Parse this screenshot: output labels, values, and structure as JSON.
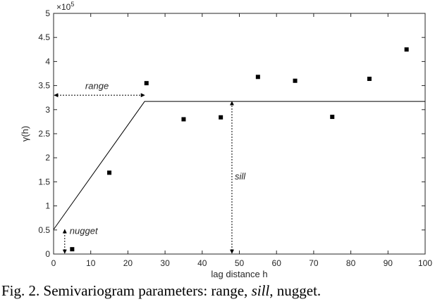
{
  "chart_data": {
    "type": "scatter",
    "xlabel": "lag distance h",
    "ylabel": "γ(h)",
    "xlim": [
      0,
      100
    ],
    "ylim": [
      0,
      5
    ],
    "y_multiplier": "×10",
    "y_multiplier_exp": "5",
    "xticks": [
      0,
      10,
      20,
      30,
      40,
      50,
      60,
      70,
      80,
      90,
      100
    ],
    "yticks": [
      0,
      0.5,
      1,
      1.5,
      2,
      2.5,
      3,
      3.5,
      4,
      4.5,
      5
    ],
    "ytick_labels": [
      "0",
      "0.5",
      "1",
      "1.5",
      "2",
      "2.5",
      "3",
      "3.5",
      "4",
      "4.5",
      "5"
    ],
    "grid": false,
    "series": [
      {
        "points": [
          {
            "x": 5,
            "y": 0.1
          },
          {
            "x": 15,
            "y": 1.69
          },
          {
            "x": 25,
            "y": 3.55
          },
          {
            "x": 35,
            "y": 2.8
          },
          {
            "x": 45,
            "y": 2.84
          },
          {
            "x": 55,
            "y": 3.68
          },
          {
            "x": 65,
            "y": 3.6
          },
          {
            "x": 75,
            "y": 2.85
          },
          {
            "x": 85,
            "y": 3.64
          },
          {
            "x": 95,
            "y": 4.25
          }
        ]
      }
    ],
    "model_line": {
      "points": [
        {
          "x": 0,
          "y": 0.51
        },
        {
          "x": 24.5,
          "y": 3.17
        },
        {
          "x": 100,
          "y": 3.17
        }
      ]
    },
    "annotations": {
      "range": {
        "label": "range",
        "from_x": 0,
        "to_x": 24.5,
        "at_y": 3.3
      },
      "sill": {
        "label": "sill",
        "at_x": 48,
        "from_y": 0,
        "to_y": 3.17
      },
      "nugget": {
        "label": "nugget",
        "at_x": 3,
        "from_y": 0,
        "to_y": 0.51
      }
    }
  },
  "caption": {
    "prefix": "Fig. 2.  Semivariogram parameters: range, ",
    "italic": "sill",
    "suffix": ", nugget."
  }
}
